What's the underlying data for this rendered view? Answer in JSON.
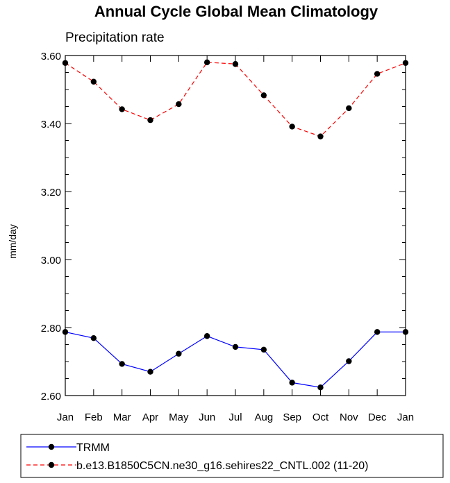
{
  "chart_data": {
    "type": "line",
    "title": "Annual Cycle Global Mean Climatology",
    "subtitle": "Precipitation rate",
    "xlabel": "",
    "ylabel": "mm/day",
    "categories": [
      "Jan",
      "Feb",
      "Mar",
      "Apr",
      "May",
      "Jun",
      "Jul",
      "Aug",
      "Sep",
      "Oct",
      "Nov",
      "Dec",
      "Jan"
    ],
    "ylim": [
      2.6,
      3.6
    ],
    "yticks": [
      2.6,
      2.8,
      3.0,
      3.2,
      3.4,
      3.6
    ],
    "ytick_labels": [
      "2.60",
      "2.80",
      "3.00",
      "3.20",
      "3.40",
      "3.60"
    ],
    "grid": false,
    "legend_position": "bottom",
    "series": [
      {
        "name": "TRMM",
        "color": "#0000ff",
        "dash": "solid",
        "values": [
          2.787,
          2.769,
          2.693,
          2.67,
          2.723,
          2.775,
          2.743,
          2.735,
          2.638,
          2.624,
          2.701,
          2.787,
          2.787
        ]
      },
      {
        "name": "b.e13.B1850C5CN.ne30_g16.sehires22_CNTL.002 (11-20)",
        "color": "#ff0000",
        "dash": "dashed",
        "values": [
          3.578,
          3.523,
          3.442,
          3.41,
          3.457,
          3.58,
          3.575,
          3.483,
          3.391,
          3.362,
          3.445,
          3.546,
          3.578
        ]
      }
    ]
  }
}
